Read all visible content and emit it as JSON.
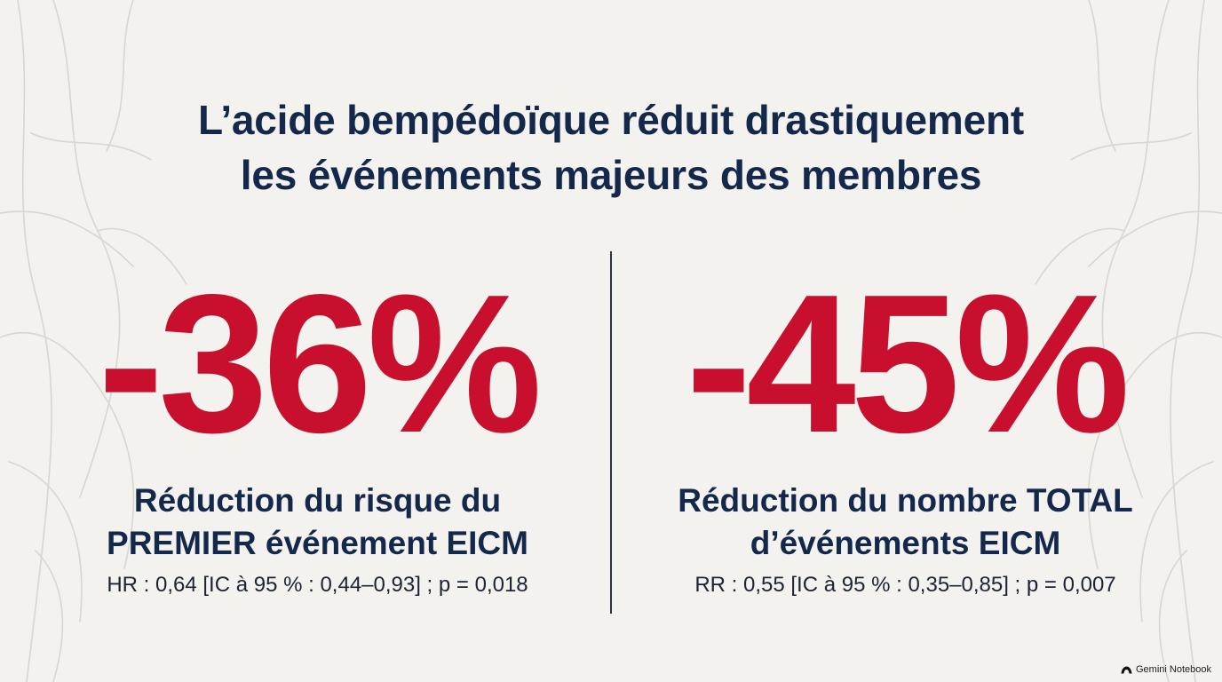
{
  "title": {
    "line1": "L’acide bempédoïque réduit drastiquement",
    "line2": "les événements majeurs des membres"
  },
  "stats": [
    {
      "value": "-36%",
      "description_line1": "Réduction du risque du",
      "description_line2": "PREMIER événement EICM",
      "statistics": "HR : 0,64 [IC à 95 % : 0,44–0,93] ; p = 0,018"
    },
    {
      "value": "-45%",
      "description_line1": "Réduction du nombre TOTAL",
      "description_line2": "d’événements EICM",
      "statistics": "RR : 0,55 [IC à 95 % : 0,35–0,85] ; p = 0,007"
    }
  ],
  "branding": {
    "label": "Gemini Notebook",
    "icon": "notebook-logo-icon"
  },
  "colors": {
    "background": "#f4f2ee",
    "title": "#13284b",
    "accent": "#c8102e",
    "divider": "#2a3345"
  }
}
